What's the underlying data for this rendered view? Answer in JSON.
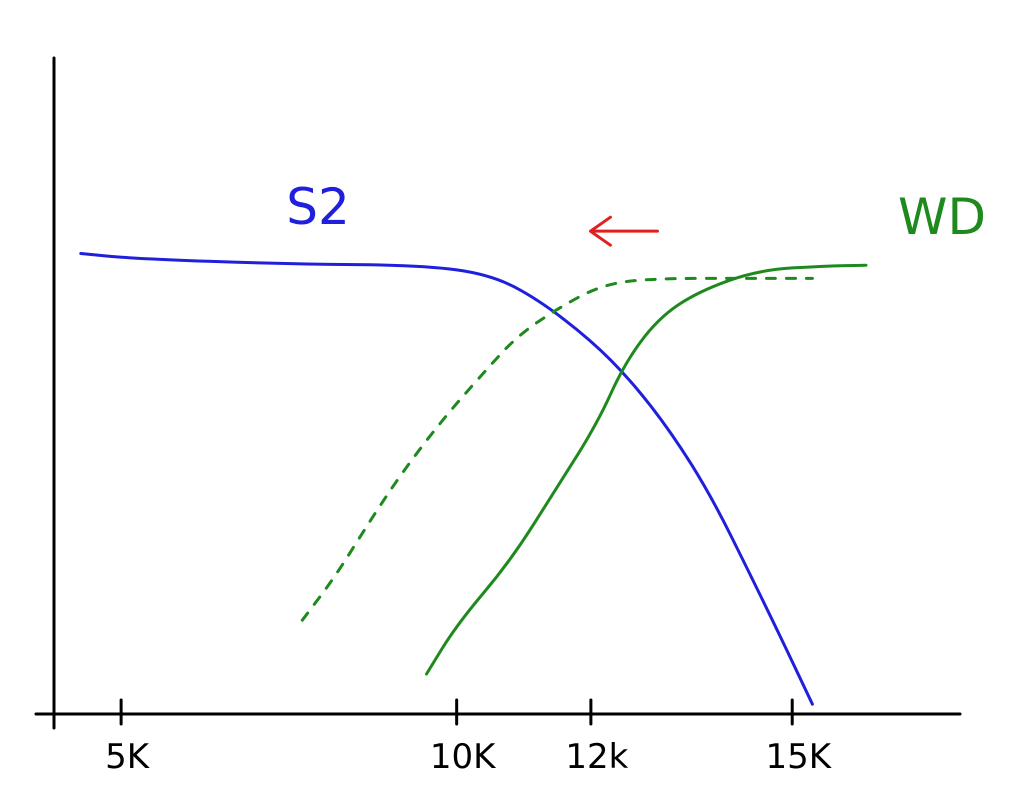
{
  "chart_data": {
    "type": "line",
    "xlabel": "",
    "ylabel": "",
    "xlim": [
      4000,
      17500
    ],
    "ylim": [
      0,
      100
    ],
    "x_ticks": [
      {
        "value": 5000,
        "label": "5K"
      },
      {
        "value": 10000,
        "label": "10K"
      },
      {
        "value": 12000,
        "label": "12k"
      },
      {
        "value": 15000,
        "label": "15K"
      }
    ],
    "series": [
      {
        "name": "S2",
        "color": "#1f1fdc",
        "style": "solid",
        "points": [
          [
            4400,
            70.2
          ],
          [
            5200,
            69.4
          ],
          [
            7500,
            68.6
          ],
          [
            9500,
            68.4
          ],
          [
            10500,
            67.0
          ],
          [
            11200,
            63.3
          ],
          [
            12000,
            57.0
          ],
          [
            12600,
            50.8
          ],
          [
            13200,
            42.9
          ],
          [
            13800,
            33.1
          ],
          [
            14400,
            20.7
          ],
          [
            14800,
            12.3
          ],
          [
            15300,
            1.5
          ]
        ]
      },
      {
        "name": "WD",
        "color": "#1e8a1e",
        "style": "solid",
        "points": [
          [
            9550,
            6.1
          ],
          [
            10000,
            13.6
          ],
          [
            10800,
            23.3
          ],
          [
            11500,
            34.6
          ],
          [
            12100,
            44.4
          ],
          [
            12500,
            53.4
          ],
          [
            13000,
            60.3
          ],
          [
            13600,
            64.4
          ],
          [
            14500,
            67.7
          ],
          [
            15500,
            68.3
          ],
          [
            16100,
            68.4
          ]
        ]
      },
      {
        "name": "",
        "color": "#1e8a1e",
        "style": "dashed",
        "points": [
          [
            7700,
            14.3
          ],
          [
            8200,
            21.1
          ],
          [
            8700,
            29.3
          ],
          [
            9200,
            37.0
          ],
          [
            9800,
            45.0
          ],
          [
            10400,
            52.0
          ],
          [
            10900,
            57.6
          ],
          [
            11500,
            61.8
          ],
          [
            12200,
            65.6
          ],
          [
            13000,
            66.4
          ],
          [
            14200,
            66.4
          ],
          [
            15300,
            66.4
          ]
        ]
      }
    ],
    "annotations": [
      {
        "type": "arrow",
        "direction": "left",
        "color": "#e02020",
        "x": 12500,
        "y": 73.6
      }
    ]
  }
}
